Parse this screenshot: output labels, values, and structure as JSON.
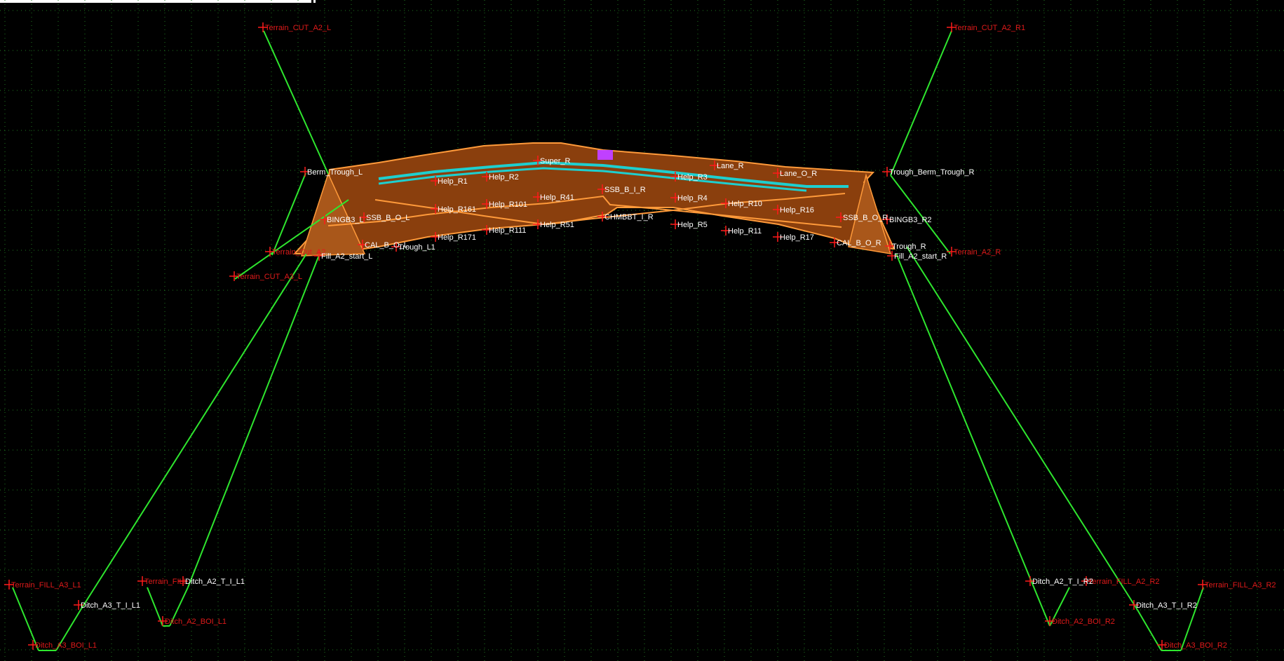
{
  "canvas": {
    "background": "#000000",
    "grid_color": "#1f7a1f",
    "green_color": "#2ee62e",
    "brown_fill": "#8a3f0d",
    "brown_edge": "#ff9a3a",
    "marker_color": "#ff1a1a",
    "red_label_color": "#e01a1a",
    "white_label_color": "#ffffff",
    "cyan_color": "#1ecfcf",
    "magenta_color": "#c040ff"
  },
  "labels_red": [
    "Terrain_CUT_A2_L",
    "Terrain_CUT_A2_R1",
    "Terrain_CUT_A3_L",
    "Terrain_Cut_A2",
    "Terrain_FILL_A3_L1",
    "Terrain_FILL_A3_R2",
    "Terrain_FILL_A2_R2",
    "Terrain_FILL",
    "Terrain_A2_R",
    "Ditch_A2_BOI_L1",
    "Ditch_A3_BOI_L1",
    "Ditch_A2_BOI_R2",
    "Ditch_A3_BOI_R2"
  ],
  "labels_white": [
    "Berm_Trough_L",
    "Trough_Berm_Trough_R",
    "Help_R161",
    "Help_R101",
    "Help_R41",
    "Help_R171",
    "Help_R111",
    "Help_R51",
    "Help_R4",
    "Help_R5",
    "Help_R10",
    "Help_R11",
    "Help_R16",
    "Help_R17",
    "SSB_B_I_R",
    "SSB_B_O_L",
    "SSB_B_O_R",
    "CHMBBT_I_R",
    "BINGB3_R2",
    "BINGB3_L",
    "CAL_B_O_L",
    "CAL_B_O_R",
    "Trough_L1",
    "Trough_R",
    "Fill_A2_start_L",
    "Fill_A2_start_R",
    "Ditch_A2_T_I_L1",
    "Ditch_A3_T_I_L1",
    "Ditch_A2_T_I_R2",
    "Ditch_A3_T_I_R2",
    "Lane_R",
    "Super_R",
    "Lane_O_R",
    "Help_R1",
    "Help_R2",
    "Help_R3"
  ]
}
